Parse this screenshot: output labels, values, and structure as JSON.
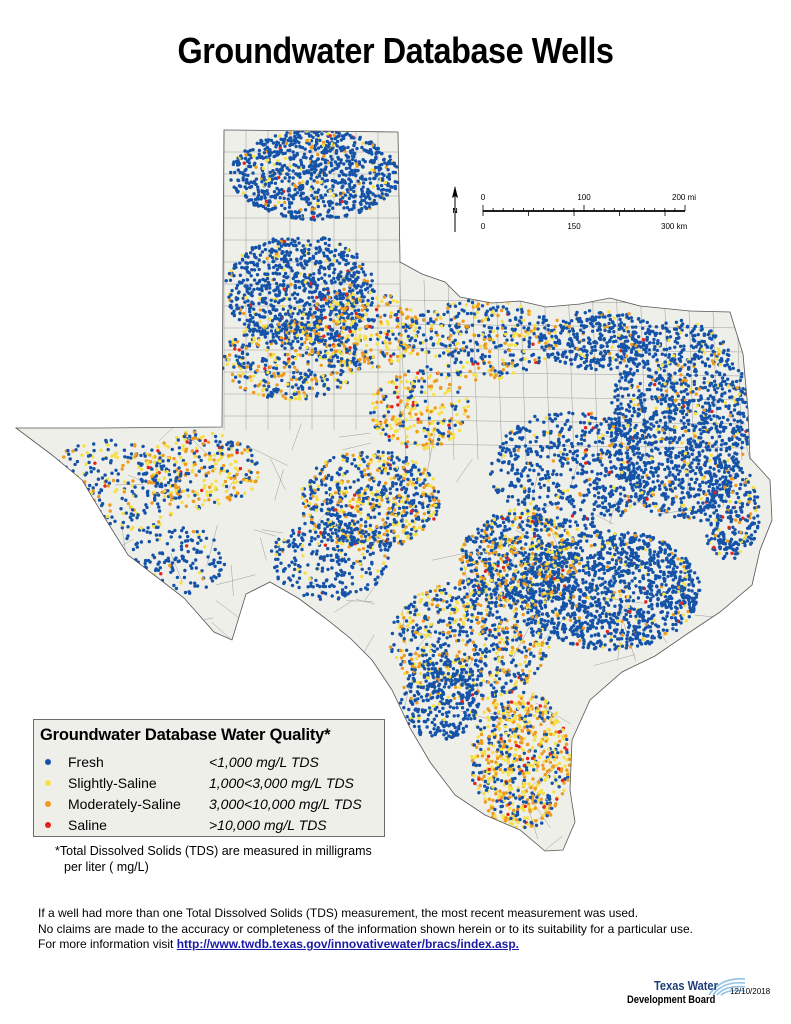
{
  "title": "Groundwater Database Wells",
  "scale_bar": {
    "miles": {
      "labels": [
        "0",
        "100",
        "200 mi"
      ]
    },
    "kilometers": {
      "labels": [
        "0",
        "150",
        "300 km"
      ]
    },
    "north_label": "N"
  },
  "legend": {
    "title": "Groundwater Database Water Quality*",
    "items": [
      {
        "label": "Fresh",
        "range": "<1,000 mg/L TDS",
        "color": "#1553a8"
      },
      {
        "label": "Slightly-Saline",
        "range": "1,000<3,000 mg/L TDS",
        "color": "#f5e04a"
      },
      {
        "label": "Moderately-Saline",
        "range": "3,000<10,000 mg/L TDS",
        "color": "#ee9a1f"
      },
      {
        "label": "Saline",
        "range": ">10,000 mg/L TDS",
        "color": "#e3231b"
      }
    ]
  },
  "tds_note": {
    "line1": "*Total Dissolved Solids (TDS) are measured in milligrams",
    "line2": "per liter ( mg/L)"
  },
  "footer": {
    "line1": "If a well had more than one Total Dissolved Solids (TDS) measurement, the most recent measurement was used.",
    "line2": "No claims are made to the accuracy or completeness of the information shown herein or to its suitability for a particular use.",
    "line3_prefix": "For more information visit ",
    "link": "http://www.twdb.texas.gov/innovativewater/bracs/index.asp."
  },
  "logo": {
    "line1": "Texas Water",
    "line2": "Development Board",
    "date": "12/10/2018",
    "color": "#1f3e7a"
  },
  "map_colors": {
    "land": "#efefe9",
    "county_lines": "#9a9a9a",
    "state_outline": "#555555"
  }
}
